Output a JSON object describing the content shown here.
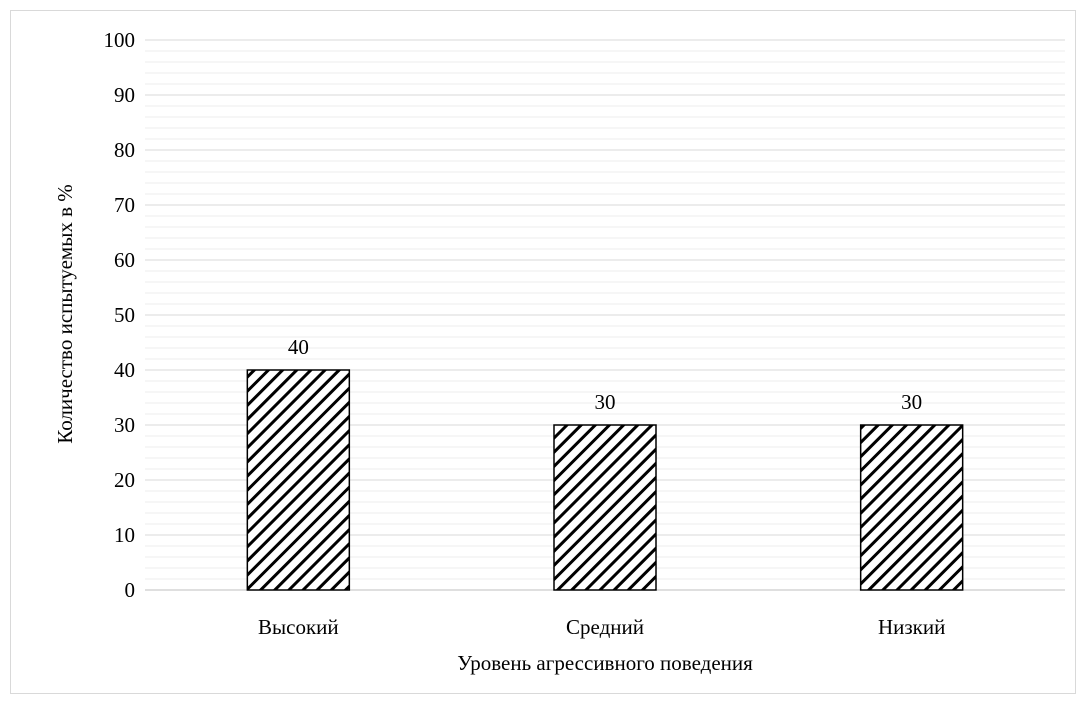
{
  "chart_data": {
    "type": "bar",
    "title": "",
    "xlabel": "Уровень агрессивного поведения",
    "ylabel": "Количество испытуемых в %",
    "categories": [
      "Высокий",
      "Средний",
      "Низкий"
    ],
    "values": [
      40,
      30,
      30
    ],
    "data_labels": [
      "40",
      "30",
      "30"
    ],
    "ylim": [
      0,
      100
    ],
    "yticks": [
      0,
      10,
      20,
      30,
      40,
      50,
      60,
      70,
      80,
      90,
      100
    ],
    "ytick_labels": [
      "0",
      "10",
      "20",
      "30",
      "40",
      "50",
      "60",
      "70",
      "80",
      "90",
      "100"
    ],
    "minor_gridlines": true,
    "grid": true,
    "legend": "none",
    "bar_fill": "diagonal-hatch",
    "colors": {
      "bar_stroke": "#000000",
      "grid_major": "#d9d9d9",
      "grid_minor": "#ececec"
    }
  }
}
